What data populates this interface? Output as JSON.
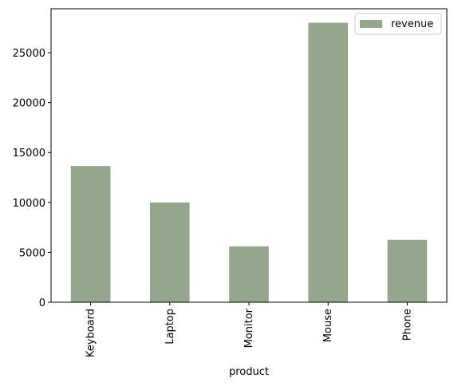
{
  "chart_data": {
    "type": "bar",
    "categories": [
      "Keyboard",
      "Laptop",
      "Monitor",
      "Mouse",
      "Phone"
    ],
    "series": [
      {
        "name": "revenue",
        "values": [
          13650,
          10000,
          5600,
          28000,
          6250
        ],
        "color": "#94a68c"
      }
    ],
    "xlabel": "product",
    "ylabel": "",
    "ylim": [
      0,
      28000
    ],
    "yticks": [
      0,
      5000,
      10000,
      15000,
      20000,
      25000
    ],
    "grid": false,
    "legend_position": "top-right"
  }
}
